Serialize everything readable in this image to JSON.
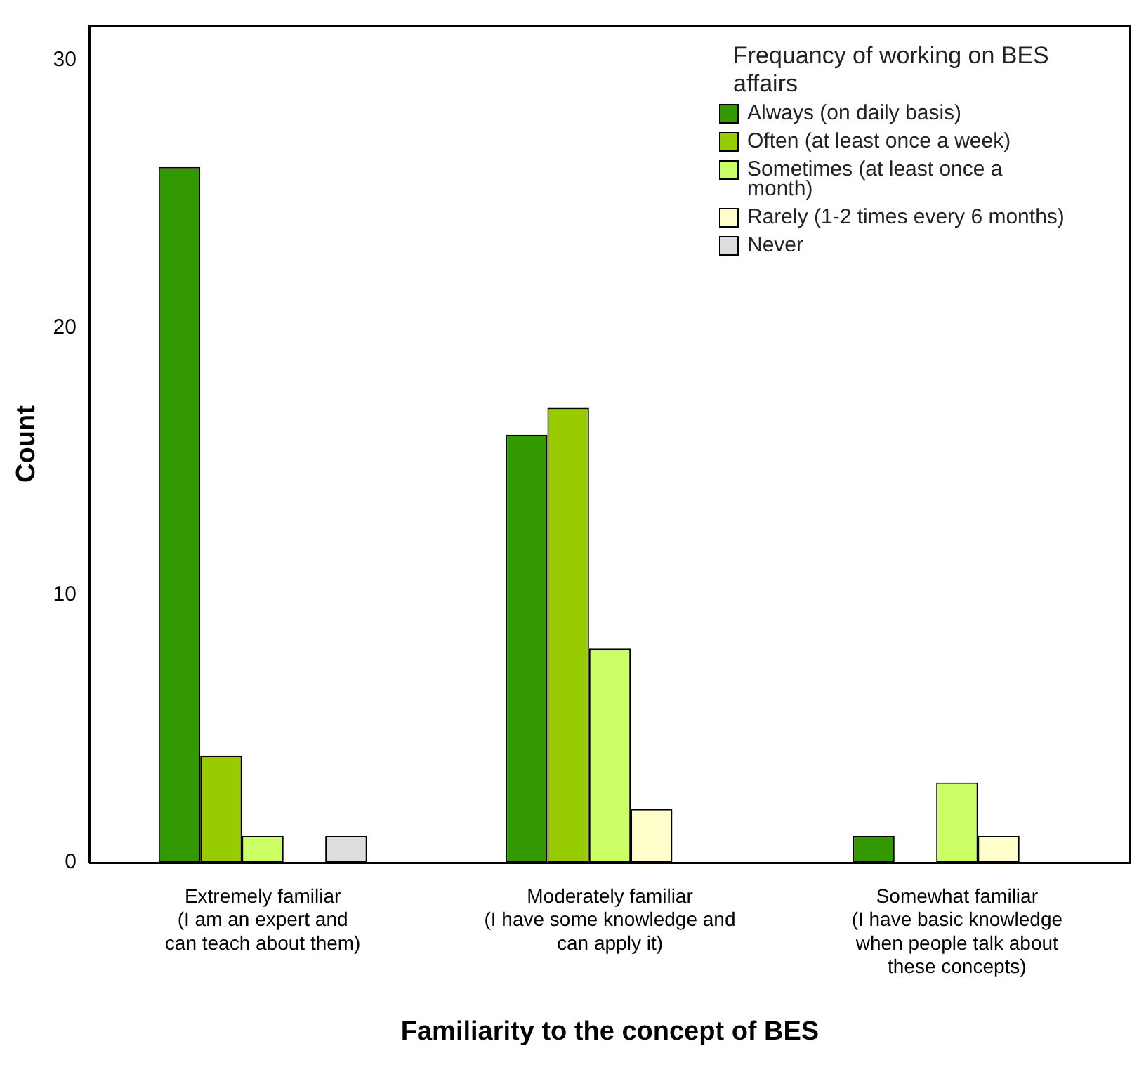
{
  "chart_data": {
    "type": "bar",
    "xlabel": "Familiarity to the concept of BES",
    "ylabel": "Count",
    "legend_title": "Frequancy of working on BES affairs",
    "legend": "top right",
    "grid": false,
    "categories": [
      "Extremely familiar\n(I am an expert and\ncan teach about them)",
      "Moderately familiar\n(I have some knowledge and\ncan apply it)",
      "Somewhat familiar\n(I have basic knowledge\nwhen people talk about\nthese concepts)"
    ],
    "ylim": [
      0,
      31.3
    ],
    "yticks": [
      0,
      10,
      20,
      30
    ],
    "series": [
      {
        "name": "Always (on daily basis)",
        "color": "#339900",
        "values": [
          26,
          16,
          1
        ]
      },
      {
        "name": "Often (at least once a week)",
        "color": "#99cc00",
        "values": [
          4,
          17,
          null
        ]
      },
      {
        "name": "Sometimes (at least once a month)",
        "color": "#ccff66",
        "values": [
          1,
          8,
          3
        ]
      },
      {
        "name": "Rarely (1-2 times every 6 months)",
        "color": "#ffffcc",
        "values": [
          null,
          2,
          1
        ]
      },
      {
        "name": "Never",
        "color": "#dddddd",
        "values": [
          1,
          null,
          null
        ]
      }
    ]
  }
}
